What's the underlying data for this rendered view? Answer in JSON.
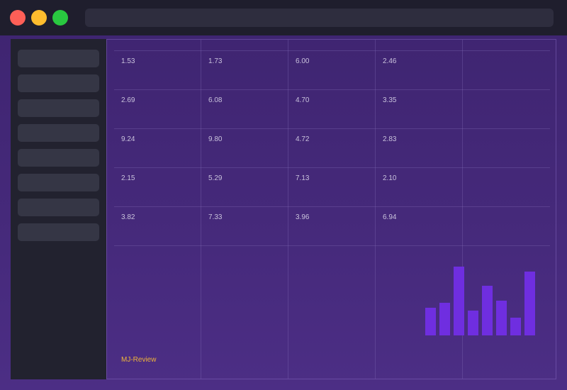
{
  "window": {
    "controls": [
      "close",
      "minimize",
      "maximize"
    ],
    "control_colors": {
      "close": "#fe5f57",
      "minimize": "#febc2e",
      "maximize": "#29c840"
    },
    "address_bar": ""
  },
  "sidebar": {
    "items": [
      "",
      "",
      "",
      "",
      "",
      "",
      "",
      ""
    ]
  },
  "table": {
    "rows": [
      [
        "1.53",
        "1.73",
        "6.00",
        "2.46",
        ""
      ],
      [
        "2.69",
        "6.08",
        "4.70",
        "3.35",
        ""
      ],
      [
        "9.24",
        "9.80",
        "4.72",
        "2.83",
        ""
      ],
      [
        "2.15",
        "5.29",
        "7.13",
        "2.10",
        ""
      ],
      [
        "3.82",
        "7.33",
        "3.96",
        "6.94",
        ""
      ]
    ]
  },
  "footer": {
    "brand": "MJ-Review",
    "brand_color": "#f0b43a"
  },
  "chart_data": {
    "type": "bar",
    "values": [
      39,
      46,
      97,
      35,
      70,
      49,
      25,
      90
    ],
    "ylim": [
      0,
      100
    ],
    "color": "#6f2ee0",
    "title": "",
    "xlabel": "",
    "ylabel": ""
  }
}
